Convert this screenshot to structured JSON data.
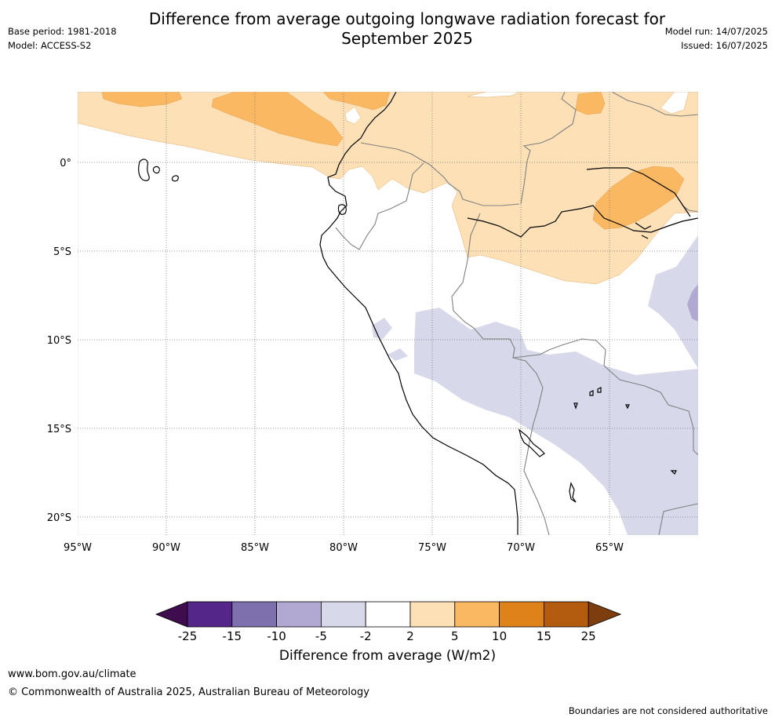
{
  "title": "Difference from average outgoing longwave radiation forecast for September 2025",
  "meta_left": {
    "base_period": "Base period: 1981-2018",
    "model": "Model: ACCESS-S2"
  },
  "meta_right": {
    "model_run": "Model run: 14/07/2025",
    "issued": "Issued: 16/07/2025"
  },
  "map": {
    "lon_ticks": [
      "95°W",
      "90°W",
      "85°W",
      "80°W",
      "75°W",
      "70°W",
      "65°W"
    ],
    "lat_ticks": [
      "0°",
      "5°S",
      "10°S",
      "15°S",
      "20°S"
    ]
  },
  "colorbar": {
    "label": "Difference from average (W/m2)",
    "tick_labels": [
      "-25",
      "-15",
      "-10",
      "-5",
      "-2",
      "2",
      "5",
      "10",
      "15",
      "25"
    ],
    "colors": [
      "#3f0d4e",
      "#54268a",
      "#7e70ad",
      "#b1a9d1",
      "#d7d8ea",
      "#ffffff",
      "#fde0b5",
      "#fbb862",
      "#e0821a",
      "#b35b0e",
      "#7d3d0e"
    ]
  },
  "footer": {
    "url": "www.bom.gov.au/climate",
    "copyright": "© Commonwealth of Australia 2025, Australian Bureau of Meteorology",
    "disclaimer": "Boundaries are not considered authoritative"
  }
}
